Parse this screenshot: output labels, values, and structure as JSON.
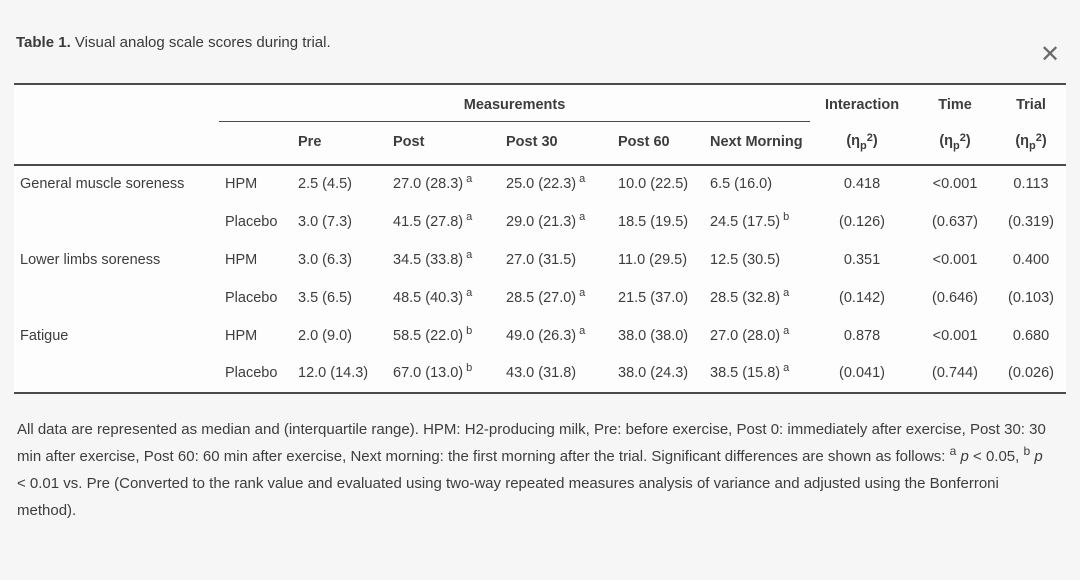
{
  "close_icon": "✕",
  "title": {
    "bold": "Table 1.",
    "rest": " Visual analog scale scores during trial."
  },
  "table": {
    "spanner": "Measurements",
    "measure_headers": [
      "Pre",
      "Post",
      "Post 30",
      "Post 60",
      "Next Morning"
    ],
    "stat_headers": [
      "Interaction",
      "Time",
      "Trial"
    ],
    "eta": {
      "open": "(η",
      "sub": "p",
      "sup": "2",
      "close": ")"
    },
    "rows": [
      {
        "label": "General muscle soreness",
        "group": "HPM",
        "cells": [
          {
            "v": "2.5 (4.5)"
          },
          {
            "v": "27.0 (28.3)",
            "s": "a"
          },
          {
            "v": "25.0 (22.3)",
            "s": "a"
          },
          {
            "v": "10.0 (22.5)"
          },
          {
            "v": "6.5 (16.0)"
          }
        ],
        "stats": [
          "0.418",
          "<0.001",
          "0.113"
        ]
      },
      {
        "label": "",
        "group": "Placebo",
        "cells": [
          {
            "v": "3.0 (7.3)"
          },
          {
            "v": "41.5 (27.8)",
            "s": "a"
          },
          {
            "v": "29.0 (21.3)",
            "s": "a"
          },
          {
            "v": "18.5 (19.5)"
          },
          {
            "v": "24.5 (17.5)",
            "s": "b"
          }
        ],
        "stats": [
          "(0.126)",
          "(0.637)",
          "(0.319)"
        ]
      },
      {
        "label": "Lower limbs soreness",
        "group": "HPM",
        "cells": [
          {
            "v": "3.0 (6.3)"
          },
          {
            "v": "34.5 (33.8)",
            "s": "a"
          },
          {
            "v": "27.0 (31.5)"
          },
          {
            "v": "11.0 (29.5)"
          },
          {
            "v": "12.5 (30.5)"
          }
        ],
        "stats": [
          "0.351",
          "<0.001",
          "0.400"
        ]
      },
      {
        "label": "",
        "group": "Placebo",
        "cells": [
          {
            "v": "3.5 (6.5)"
          },
          {
            "v": "48.5 (40.3)",
            "s": "a"
          },
          {
            "v": "28.5 (27.0)",
            "s": "a"
          },
          {
            "v": "21.5 (37.0)"
          },
          {
            "v": "28.5 (32.8)",
            "s": "a"
          }
        ],
        "stats": [
          "(0.142)",
          "(0.646)",
          "(0.103)"
        ]
      },
      {
        "label": "Fatigue",
        "group": "HPM",
        "cells": [
          {
            "v": "2.0 (9.0)"
          },
          {
            "v": "58.5 (22.0)",
            "s": "b"
          },
          {
            "v": "49.0 (26.3)",
            "s": "a"
          },
          {
            "v": "38.0 (38.0)"
          },
          {
            "v": "27.0 (28.0)",
            "s": "a"
          }
        ],
        "stats": [
          "0.878",
          "<0.001",
          "0.680"
        ]
      },
      {
        "label": "",
        "group": "Placebo",
        "cells": [
          {
            "v": "12.0 (14.3)"
          },
          {
            "v": "67.0 (13.0)",
            "s": "b"
          },
          {
            "v": "43.0 (31.8)"
          },
          {
            "v": "38.0 (24.3)"
          },
          {
            "v": "38.5 (15.8)",
            "s": "a"
          }
        ],
        "stats": [
          "(0.041)",
          "(0.744)",
          "(0.026)"
        ]
      }
    ]
  },
  "footnote": {
    "segments": [
      {
        "t": "text",
        "v": "All data are represented as median and (interquartile range). HPM: H2-producing milk, Pre: before exercise, Post 0: immediately after exercise, Post 30: 30 min after exercise, Post 60: 60 min after exercise, Next morning: the first morning after the trial. Significant differences are shown as follows: "
      },
      {
        "t": "sup",
        "v": "a"
      },
      {
        "t": "text",
        "v": " "
      },
      {
        "t": "i",
        "v": "p"
      },
      {
        "t": "text",
        "v": " < 0.05, "
      },
      {
        "t": "sup",
        "v": "b"
      },
      {
        "t": "text",
        "v": " "
      },
      {
        "t": "i",
        "v": "p"
      },
      {
        "t": "text",
        "v": " < 0.01 vs. Pre (Converted to the rank value and evaluated using two-way repeated measures analysis of variance and adjusted using the Bonferroni method)."
      }
    ]
  }
}
